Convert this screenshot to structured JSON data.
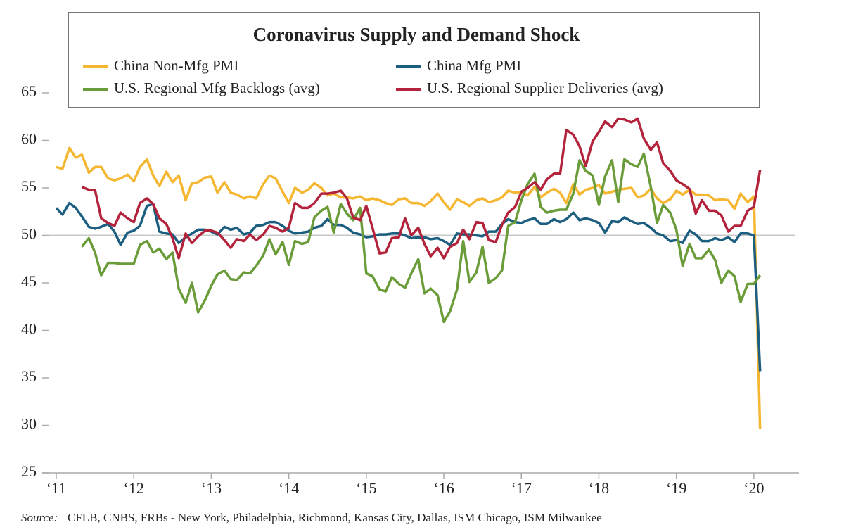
{
  "chart_data": {
    "type": "line",
    "title": "Coronavirus Supply and Demand Shock",
    "source_label": "Source:",
    "source": "CFLB, CNBS, FRBs - New York, Philadelphia, Richmond, Kansas City, Dallas, ISM Chicago, ISM Milwaukee",
    "x": [
      2011,
      2011.08,
      2011.17,
      2011.25,
      2011.33,
      2011.42,
      2011.5,
      2011.58,
      2011.67,
      2011.75,
      2011.83,
      2011.92,
      2012,
      2012.08,
      2012.17,
      2012.25,
      2012.33,
      2012.42,
      2012.5,
      2012.58,
      2012.67,
      2012.75,
      2012.83,
      2012.92,
      2013,
      2013.08,
      2013.17,
      2013.25,
      2013.33,
      2013.42,
      2013.5,
      2013.58,
      2013.67,
      2013.75,
      2013.83,
      2013.92,
      2014,
      2014.08,
      2014.17,
      2014.25,
      2014.33,
      2014.42,
      2014.5,
      2014.58,
      2014.67,
      2014.75,
      2014.83,
      2014.92,
      2015,
      2015.08,
      2015.17,
      2015.25,
      2015.33,
      2015.42,
      2015.5,
      2015.58,
      2015.67,
      2015.75,
      2015.83,
      2015.92,
      2016,
      2016.08,
      2016.17,
      2016.25,
      2016.33,
      2016.42,
      2016.5,
      2016.58,
      2016.67,
      2016.75,
      2016.83,
      2016.92,
      2017,
      2017.08,
      2017.17,
      2017.25,
      2017.33,
      2017.42,
      2017.5,
      2017.58,
      2017.67,
      2017.75,
      2017.83,
      2017.92,
      2018,
      2018.08,
      2018.17,
      2018.25,
      2018.33,
      2018.42,
      2018.5,
      2018.58,
      2018.67,
      2018.75,
      2018.83,
      2018.92,
      2019,
      2019.08,
      2019.17,
      2019.25,
      2019.33,
      2019.42,
      2019.5,
      2019.58,
      2019.67,
      2019.75,
      2019.83,
      2019.92,
      2020,
      2020.08
    ],
    "series": [
      {
        "name": "China Non-Mfg PMI",
        "color": "#f5b731",
        "values": [
          57.2,
          57,
          59.2,
          58.2,
          58.5,
          56.6,
          57.2,
          57.2,
          56,
          55.8,
          56,
          56.4,
          55.7,
          57.2,
          58,
          56.3,
          55.2,
          56.7,
          55.6,
          56.3,
          53.7,
          55.5,
          55.6,
          56.1,
          56.2,
          54.5,
          55.6,
          54.5,
          54.3,
          53.9,
          54.1,
          53.9,
          55.4,
          56.3,
          56,
          54.6,
          53.4,
          55,
          54.5,
          54.8,
          55.5,
          55,
          54.2,
          54.4,
          54,
          54,
          53.9,
          54.1,
          53.7,
          53.9,
          53.7,
          53.4,
          53.2,
          53.8,
          53.9,
          53.4,
          53.4,
          53.1,
          53.6,
          54.4,
          53.5,
          52.7,
          53.8,
          53.5,
          53.1,
          53.7,
          53.9,
          53.5,
          53.7,
          54,
          54.7,
          54.5,
          54.6,
          54.2,
          55.1,
          54,
          54.5,
          54.9,
          54.5,
          53.4,
          55.4,
          54.3,
          54.8,
          55,
          55.3,
          54.4,
          54.6,
          54.8,
          54.9,
          55,
          54,
          54.2,
          54.9,
          53.9,
          53.4,
          53.8,
          54.7,
          54.3,
          54.8,
          54.3,
          54.3,
          54.2,
          53.7,
          53.8,
          53.7,
          52.8,
          54.4,
          53.5,
          54.1,
          29.6
        ]
      },
      {
        "name": "China Mfg PMI",
        "color": "#1b5e80",
        "values": [
          52.9,
          52.2,
          53.4,
          52.9,
          52,
          50.9,
          50.7,
          50.9,
          51.2,
          50.4,
          49,
          50.3,
          50.5,
          51,
          53.1,
          53.3,
          50.4,
          50.2,
          50.1,
          49.2,
          49.8,
          50.2,
          50.6,
          50.6,
          50.4,
          50.1,
          50.9,
          50.6,
          50.8,
          50.1,
          50.3,
          51,
          51.1,
          51.4,
          51.4,
          51,
          50.5,
          50.2,
          50.3,
          50.4,
          50.8,
          51,
          51.7,
          51.1,
          51.1,
          50.8,
          50.3,
          50.1,
          49.8,
          49.9,
          50.1,
          50.1,
          50.2,
          50.2,
          50,
          49.7,
          49.8,
          49.8,
          49.6,
          49.7,
          49.4,
          49,
          50.2,
          50.1,
          50.1,
          50,
          49.9,
          50.4,
          50.4,
          51.2,
          51.7,
          51.4,
          51.3,
          51.6,
          51.8,
          51.2,
          51.2,
          51.7,
          51.4,
          51.7,
          52.4,
          51.6,
          51.8,
          51.6,
          51.3,
          50.3,
          51.5,
          51.4,
          51.9,
          51.5,
          51.2,
          51.3,
          50.8,
          50.2,
          50,
          49.4,
          49.5,
          49.2,
          50.5,
          50.1,
          49.4,
          49.4,
          49.7,
          49.5,
          49.8,
          49.3,
          50.2,
          50.2,
          50,
          35.7
        ]
      },
      {
        "name": "U.S. Regional Mfg Backlogs (avg)",
        "color": "#6b9c3a",
        "values": [
          null,
          null,
          null,
          null,
          48.8,
          49.7,
          48.2,
          45.8,
          47.1,
          47.1,
          47,
          47,
          47,
          49,
          49.4,
          48.2,
          48.6,
          47.5,
          48.2,
          44.4,
          42.9,
          45,
          41.9,
          43.2,
          44.7,
          45.9,
          46.3,
          45.4,
          45.3,
          46.1,
          46,
          46.8,
          47.9,
          49.6,
          48,
          49.3,
          46.9,
          49.4,
          49.1,
          49.3,
          51.9,
          52.6,
          53,
          50.3,
          53.3,
          52.3,
          51.6,
          52.9,
          46,
          45.7,
          44.3,
          44.1,
          45.6,
          44.9,
          44.5,
          46,
          47.5,
          43.9,
          44.4,
          43.7,
          40.9,
          42,
          44.3,
          49.4,
          45.1,
          46.1,
          48.8,
          45,
          45.5,
          46.3,
          51,
          51.4,
          53.7,
          55.4,
          56.5,
          53,
          52.4,
          52.6,
          52.7,
          52.7,
          54.4,
          57.9,
          56.8,
          56.3,
          53.2,
          56.2,
          57.9,
          53.5,
          58,
          57.5,
          57.2,
          58.6,
          55.1,
          51.3,
          53.2,
          52.4,
          50.6,
          46.8,
          49.1,
          47.6,
          47.6,
          48.5,
          47.4,
          45,
          46.3,
          45.7,
          43,
          44.9,
          44.9,
          45.8
        ]
      },
      {
        "name": "U.S. Regional Supplier Deliveries (avg)",
        "color": "#b3243c",
        "values": [
          null,
          null,
          null,
          null,
          55.1,
          54.8,
          54.8,
          51.8,
          51.3,
          51,
          52.4,
          51.8,
          51.4,
          53.4,
          53.9,
          53.3,
          51.8,
          51.2,
          49.7,
          47.6,
          50.2,
          49.2,
          49.9,
          50.5,
          50.5,
          50.3,
          49.5,
          48.7,
          49.6,
          49.4,
          50.1,
          49.5,
          50.1,
          51,
          50.8,
          50.4,
          50.8,
          53.4,
          52.9,
          52.9,
          53.4,
          54.4,
          54.4,
          54.5,
          54.7,
          53.9,
          51.9,
          51.6,
          53.1,
          50.8,
          48.1,
          48.2,
          49.7,
          49.8,
          51.8,
          50,
          50.8,
          49.1,
          47.8,
          48.7,
          47.6,
          48.8,
          49.2,
          50.6,
          49.6,
          51.4,
          51.3,
          49.5,
          49.3,
          51.1,
          52.4,
          53,
          54.6,
          55,
          55.6,
          54.8,
          55.9,
          56.5,
          56.5,
          61.1,
          60.6,
          59.4,
          57.3,
          59.9,
          60.9,
          62,
          61.4,
          62.3,
          62.2,
          61.9,
          62.3,
          60.2,
          59,
          59.8,
          57.6,
          56.8,
          55.8,
          55.4,
          54.9,
          52.3,
          53.7,
          52.6,
          52.6,
          52.1,
          50.4,
          51,
          51,
          52.6,
          53,
          56.9
        ]
      }
    ],
    "xlim": [
      2011,
      2020.6
    ],
    "xticks": [
      {
        "value": 2011,
        "label": "‘11"
      },
      {
        "value": 2012,
        "label": "‘12"
      },
      {
        "value": 2013,
        "label": "‘13"
      },
      {
        "value": 2014,
        "label": "‘14"
      },
      {
        "value": 2015,
        "label": "‘15"
      },
      {
        "value": 2016,
        "label": "‘16"
      },
      {
        "value": 2017,
        "label": "‘17"
      },
      {
        "value": 2018,
        "label": "‘18"
      },
      {
        "value": 2019,
        "label": "‘19"
      },
      {
        "value": 2020,
        "label": "‘20"
      }
    ],
    "ylim": [
      25,
      65
    ],
    "yticks": [
      25,
      30,
      35,
      40,
      45,
      50,
      55,
      60,
      65
    ],
    "reference_line": 50,
    "grid": false
  }
}
